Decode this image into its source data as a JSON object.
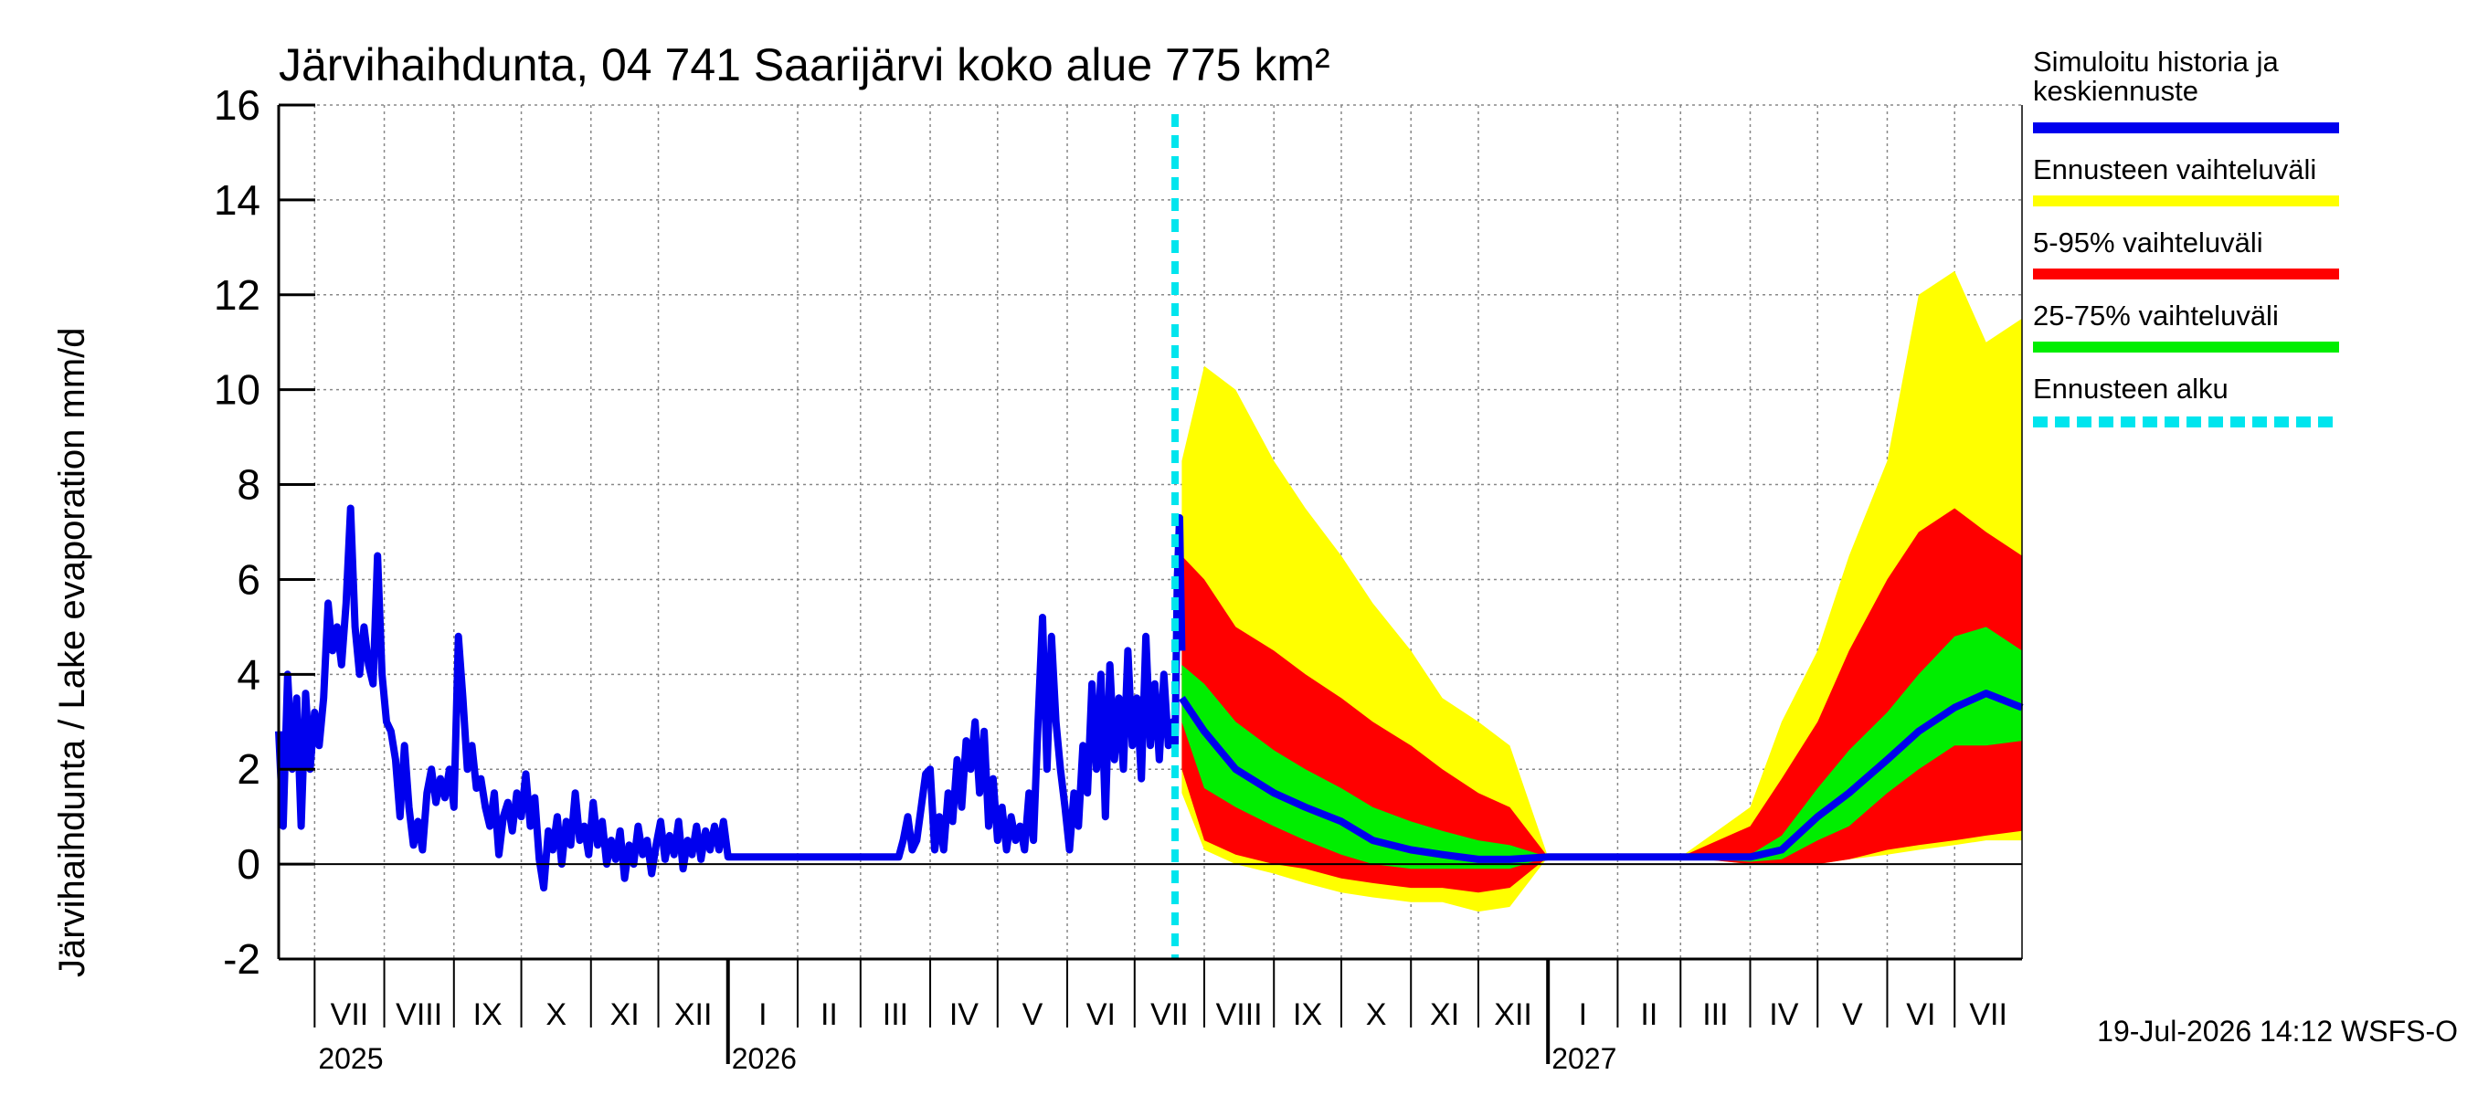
{
  "chart_data": {
    "type": "area",
    "title": "Järvihaihdunta, 04 741 Saarijärvi koko alue 775 km²",
    "ylabel": "Järvihaihdunta / Lake evaporation   mm/d",
    "ylim": [
      -2,
      16
    ],
    "yticks": [
      -2,
      0,
      2,
      4,
      6,
      8,
      10,
      12,
      14,
      16
    ],
    "grid": true,
    "legend_position": "right",
    "x_range": [
      "2025-06-15",
      "2027-07-31"
    ],
    "forecast_start": "2026-07-19",
    "months": [
      {
        "label": "VII",
        "start": "2025-07-01"
      },
      {
        "label": "VIII",
        "start": "2025-08-01"
      },
      {
        "label": "IX",
        "start": "2025-09-01"
      },
      {
        "label": "X",
        "start": "2025-10-01"
      },
      {
        "label": "XI",
        "start": "2025-11-01"
      },
      {
        "label": "XII",
        "start": "2025-12-01"
      },
      {
        "label": "I",
        "start": "2026-01-01"
      },
      {
        "label": "II",
        "start": "2026-02-01"
      },
      {
        "label": "III",
        "start": "2026-03-01"
      },
      {
        "label": "IV",
        "start": "2026-04-01"
      },
      {
        "label": "V",
        "start": "2026-05-01"
      },
      {
        "label": "VI",
        "start": "2026-06-01"
      },
      {
        "label": "VII",
        "start": "2026-07-01"
      },
      {
        "label": "VIII",
        "start": "2026-08-01"
      },
      {
        "label": "IX",
        "start": "2026-09-01"
      },
      {
        "label": "X",
        "start": "2026-10-01"
      },
      {
        "label": "XI",
        "start": "2026-11-01"
      },
      {
        "label": "XII",
        "start": "2026-12-01"
      },
      {
        "label": "I",
        "start": "2027-01-01"
      },
      {
        "label": "II",
        "start": "2027-02-01"
      },
      {
        "label": "III",
        "start": "2027-03-01"
      },
      {
        "label": "IV",
        "start": "2027-04-01"
      },
      {
        "label": "V",
        "start": "2027-05-01"
      },
      {
        "label": "VI",
        "start": "2027-06-01"
      },
      {
        "label": "VII",
        "start": "2027-07-01"
      }
    ],
    "years": [
      {
        "label": "2025",
        "at": "2025-07-01"
      },
      {
        "label": "2026",
        "at": "2026-01-01"
      },
      {
        "label": "2027",
        "at": "2027-01-01"
      }
    ],
    "legend": [
      {
        "label": "Simuloitu historia ja keskiennuste",
        "color": "#0000ee",
        "style": "solid"
      },
      {
        "label": "Ennusteen vaihteluväli",
        "color": "#ffff00",
        "style": "solid"
      },
      {
        "label": "5-95% vaihteluväli",
        "color": "#ff0000",
        "style": "solid"
      },
      {
        "label": "25-75% vaihteluväli",
        "color": "#00ee00",
        "style": "solid"
      },
      {
        "label": "Ennusteen alku",
        "color": "#00e5ee",
        "style": "dashed"
      }
    ],
    "history": [
      [
        "2025-06-15",
        2.8
      ],
      [
        "2025-06-17",
        0.8
      ],
      [
        "2025-06-19",
        4.0
      ],
      [
        "2025-06-21",
        2.0
      ],
      [
        "2025-06-23",
        3.5
      ],
      [
        "2025-06-25",
        0.8
      ],
      [
        "2025-06-27",
        3.6
      ],
      [
        "2025-06-29",
        2.0
      ],
      [
        "2025-07-01",
        3.2
      ],
      [
        "2025-07-03",
        2.5
      ],
      [
        "2025-07-05",
        3.5
      ],
      [
        "2025-07-07",
        5.5
      ],
      [
        "2025-07-09",
        4.5
      ],
      [
        "2025-07-11",
        5.0
      ],
      [
        "2025-07-13",
        4.2
      ],
      [
        "2025-07-15",
        5.5
      ],
      [
        "2025-07-17",
        7.5
      ],
      [
        "2025-07-19",
        5.0
      ],
      [
        "2025-07-21",
        4.0
      ],
      [
        "2025-07-23",
        5.0
      ],
      [
        "2025-07-25",
        4.2
      ],
      [
        "2025-07-27",
        3.8
      ],
      [
        "2025-07-29",
        6.5
      ],
      [
        "2025-07-31",
        4.0
      ],
      [
        "2025-08-02",
        3.0
      ],
      [
        "2025-08-04",
        2.8
      ],
      [
        "2025-08-06",
        2.2
      ],
      [
        "2025-08-08",
        1.0
      ],
      [
        "2025-08-10",
        2.5
      ],
      [
        "2025-08-12",
        1.2
      ],
      [
        "2025-08-14",
        0.4
      ],
      [
        "2025-08-16",
        0.9
      ],
      [
        "2025-08-18",
        0.3
      ],
      [
        "2025-08-20",
        1.5
      ],
      [
        "2025-08-22",
        2.0
      ],
      [
        "2025-08-24",
        1.3
      ],
      [
        "2025-08-26",
        1.8
      ],
      [
        "2025-08-28",
        1.4
      ],
      [
        "2025-08-30",
        2.0
      ],
      [
        "2025-09-01",
        1.2
      ],
      [
        "2025-09-03",
        4.8
      ],
      [
        "2025-09-05",
        3.5
      ],
      [
        "2025-09-07",
        2.0
      ],
      [
        "2025-09-09",
        2.5
      ],
      [
        "2025-09-11",
        1.6
      ],
      [
        "2025-09-13",
        1.8
      ],
      [
        "2025-09-15",
        1.2
      ],
      [
        "2025-09-17",
        0.8
      ],
      [
        "2025-09-19",
        1.5
      ],
      [
        "2025-09-21",
        0.2
      ],
      [
        "2025-09-23",
        1.0
      ],
      [
        "2025-09-25",
        1.3
      ],
      [
        "2025-09-27",
        0.7
      ],
      [
        "2025-09-29",
        1.5
      ],
      [
        "2025-10-01",
        1.0
      ],
      [
        "2025-10-03",
        1.9
      ],
      [
        "2025-10-05",
        0.8
      ],
      [
        "2025-10-07",
        1.4
      ],
      [
        "2025-10-09",
        0.1
      ],
      [
        "2025-10-11",
        -0.5
      ],
      [
        "2025-10-13",
        0.7
      ],
      [
        "2025-10-15",
        0.3
      ],
      [
        "2025-10-17",
        1.0
      ],
      [
        "2025-10-19",
        0.0
      ],
      [
        "2025-10-21",
        0.9
      ],
      [
        "2025-10-23",
        0.4
      ],
      [
        "2025-10-25",
        1.5
      ],
      [
        "2025-10-27",
        0.5
      ],
      [
        "2025-10-29",
        0.8
      ],
      [
        "2025-10-31",
        0.2
      ],
      [
        "2025-11-02",
        1.3
      ],
      [
        "2025-11-04",
        0.4
      ],
      [
        "2025-11-06",
        0.9
      ],
      [
        "2025-11-08",
        0.0
      ],
      [
        "2025-11-10",
        0.5
      ],
      [
        "2025-11-12",
        0.1
      ],
      [
        "2025-11-14",
        0.7
      ],
      [
        "2025-11-16",
        -0.3
      ],
      [
        "2025-11-18",
        0.4
      ],
      [
        "2025-11-20",
        0.0
      ],
      [
        "2025-11-22",
        0.8
      ],
      [
        "2025-11-24",
        0.2
      ],
      [
        "2025-11-26",
        0.5
      ],
      [
        "2025-11-28",
        -0.2
      ],
      [
        "2025-11-30",
        0.4
      ],
      [
        "2025-12-02",
        0.9
      ],
      [
        "2025-12-04",
        0.1
      ],
      [
        "2025-12-06",
        0.6
      ],
      [
        "2025-12-08",
        0.2
      ],
      [
        "2025-12-10",
        0.9
      ],
      [
        "2025-12-12",
        -0.1
      ],
      [
        "2025-12-14",
        0.5
      ],
      [
        "2025-12-16",
        0.2
      ],
      [
        "2025-12-18",
        0.8
      ],
      [
        "2025-12-20",
        0.1
      ],
      [
        "2025-12-22",
        0.7
      ],
      [
        "2025-12-24",
        0.3
      ],
      [
        "2025-12-26",
        0.8
      ],
      [
        "2025-12-28",
        0.3
      ],
      [
        "2025-12-30",
        0.9
      ],
      [
        "2026-01-01",
        0.15
      ],
      [
        "2026-03-18",
        0.15
      ],
      [
        "2026-03-20",
        0.5
      ],
      [
        "2026-03-22",
        1.0
      ],
      [
        "2026-03-24",
        0.3
      ],
      [
        "2026-03-26",
        0.5
      ],
      [
        "2026-03-28",
        1.2
      ],
      [
        "2026-03-30",
        1.9
      ],
      [
        "2026-04-01",
        2.0
      ],
      [
        "2026-04-03",
        0.3
      ],
      [
        "2026-04-05",
        1.0
      ],
      [
        "2026-04-07",
        0.3
      ],
      [
        "2026-04-09",
        1.5
      ],
      [
        "2026-04-11",
        0.9
      ],
      [
        "2026-04-13",
        2.2
      ],
      [
        "2026-04-15",
        1.2
      ],
      [
        "2026-04-17",
        2.6
      ],
      [
        "2026-04-19",
        2.0
      ],
      [
        "2026-04-21",
        3.0
      ],
      [
        "2026-04-23",
        1.5
      ],
      [
        "2026-04-25",
        2.8
      ],
      [
        "2026-04-27",
        0.8
      ],
      [
        "2026-04-29",
        1.8
      ],
      [
        "2026-05-01",
        0.5
      ],
      [
        "2026-05-03",
        1.2
      ],
      [
        "2026-05-05",
        0.3
      ],
      [
        "2026-05-07",
        1.0
      ],
      [
        "2026-05-09",
        0.5
      ],
      [
        "2026-05-11",
        0.8
      ],
      [
        "2026-05-13",
        0.3
      ],
      [
        "2026-05-15",
        1.5
      ],
      [
        "2026-05-17",
        0.5
      ],
      [
        "2026-05-19",
        3.0
      ],
      [
        "2026-05-21",
        5.2
      ],
      [
        "2026-05-23",
        2.0
      ],
      [
        "2026-05-25",
        4.8
      ],
      [
        "2026-05-27",
        3.0
      ],
      [
        "2026-05-29",
        2.0
      ],
      [
        "2026-05-31",
        1.2
      ],
      [
        "2026-06-02",
        0.3
      ],
      [
        "2026-06-04",
        1.5
      ],
      [
        "2026-06-06",
        0.8
      ],
      [
        "2026-06-08",
        2.5
      ],
      [
        "2026-06-10",
        1.5
      ],
      [
        "2026-06-12",
        3.8
      ],
      [
        "2026-06-14",
        2.0
      ],
      [
        "2026-06-16",
        4.0
      ],
      [
        "2026-06-18",
        1.0
      ],
      [
        "2026-06-20",
        4.2
      ],
      [
        "2026-06-22",
        2.2
      ],
      [
        "2026-06-24",
        3.5
      ],
      [
        "2026-06-26",
        2.0
      ],
      [
        "2026-06-28",
        4.5
      ],
      [
        "2026-06-30",
        2.5
      ],
      [
        "2026-07-02",
        3.5
      ],
      [
        "2026-07-04",
        1.8
      ],
      [
        "2026-07-06",
        4.8
      ],
      [
        "2026-07-08",
        2.5
      ],
      [
        "2026-07-10",
        3.8
      ],
      [
        "2026-07-12",
        2.2
      ],
      [
        "2026-07-14",
        4.0
      ],
      [
        "2026-07-16",
        2.5
      ],
      [
        "2026-07-18",
        3.0
      ],
      [
        "2026-07-19",
        2.5
      ],
      [
        "2026-07-20",
        6.0
      ],
      [
        "2026-07-21",
        7.3
      ],
      [
        "2026-07-22",
        4.5
      ]
    ],
    "forecast": {
      "dates": [
        "2026-07-22",
        "2026-08-01",
        "2026-08-15",
        "2026-09-01",
        "2026-09-15",
        "2026-10-01",
        "2026-10-15",
        "2026-11-01",
        "2026-11-15",
        "2026-12-01",
        "2026-12-15",
        "2027-01-01",
        "2027-02-01",
        "2027-03-01",
        "2027-04-01",
        "2027-04-15",
        "2027-05-01",
        "2027-05-15",
        "2027-06-01",
        "2027-06-15",
        "2027-07-01",
        "2027-07-15",
        "2027-07-31"
      ],
      "min": [
        1.5,
        0.3,
        0.0,
        -0.2,
        -0.4,
        -0.6,
        -0.7,
        -0.8,
        -0.8,
        -1.0,
        -0.9,
        0.15,
        0.15,
        0.15,
        0.0,
        0.0,
        0.0,
        0.1,
        0.2,
        0.3,
        0.4,
        0.5,
        0.5
      ],
      "p5": [
        2.0,
        0.5,
        0.2,
        0.0,
        -0.1,
        -0.3,
        -0.4,
        -0.5,
        -0.5,
        -0.6,
        -0.5,
        0.15,
        0.15,
        0.15,
        0.0,
        0.0,
        0.0,
        0.1,
        0.3,
        0.4,
        0.5,
        0.6,
        0.7
      ],
      "p25": [
        3.0,
        1.6,
        1.2,
        0.8,
        0.5,
        0.2,
        0.0,
        -0.1,
        -0.1,
        -0.1,
        -0.1,
        0.15,
        0.15,
        0.15,
        0.05,
        0.1,
        0.5,
        0.8,
        1.5,
        2.0,
        2.5,
        2.5,
        2.6
      ],
      "mean": [
        3.5,
        2.8,
        2.0,
        1.5,
        1.2,
        0.9,
        0.5,
        0.3,
        0.2,
        0.1,
        0.1,
        0.15,
        0.15,
        0.15,
        0.15,
        0.3,
        1.0,
        1.5,
        2.2,
        2.8,
        3.3,
        3.6,
        3.3
      ],
      "p75": [
        4.2,
        3.8,
        3.0,
        2.4,
        2.0,
        1.6,
        1.2,
        0.9,
        0.7,
        0.5,
        0.4,
        0.15,
        0.15,
        0.15,
        0.2,
        0.6,
        1.6,
        2.4,
        3.2,
        4.0,
        4.8,
        5.0,
        4.5
      ],
      "p95": [
        6.5,
        6.0,
        5.0,
        4.5,
        4.0,
        3.5,
        3.0,
        2.5,
        2.0,
        1.5,
        1.2,
        0.15,
        0.15,
        0.15,
        0.8,
        1.8,
        3.0,
        4.5,
        6.0,
        7.0,
        7.5,
        7.0,
        6.5
      ],
      "max": [
        8.5,
        10.5,
        10.0,
        8.5,
        7.5,
        6.5,
        5.5,
        4.5,
        3.5,
        3.0,
        2.5,
        0.15,
        0.15,
        0.15,
        1.2,
        3.0,
        4.5,
        6.5,
        8.5,
        12.0,
        12.5,
        11.0,
        11.5
      ]
    },
    "timestamp": "19-Jul-2026 14:12 WSFS-O"
  }
}
